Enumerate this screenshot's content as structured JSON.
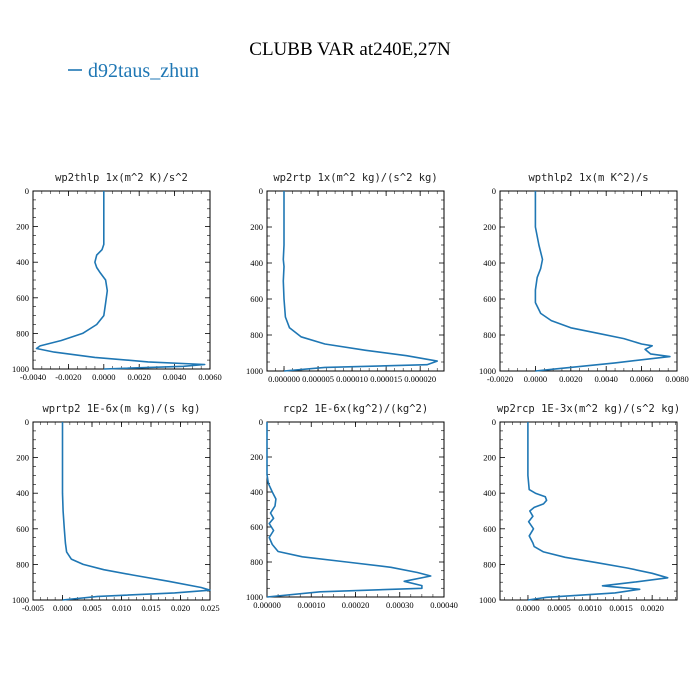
{
  "figure": {
    "title": "CLUBB VAR at240E,27N",
    "legend_label": "d92taus_zhun",
    "line_color": "#1f77b4"
  },
  "chart_data": [
    {
      "type": "line",
      "title": "wp2thlp  1x(m^2 K)/s^2",
      "xlim": [
        -0.004,
        0.006
      ],
      "ylim": [
        1000,
        0
      ],
      "xticks": [
        -0.004,
        -0.002,
        0.0,
        0.002,
        0.004,
        0.006
      ],
      "xtick_labels": [
        "-0.0040",
        "-0.0020",
        "0.0000",
        "0.0020",
        "0.0040",
        "0.0060"
      ],
      "yticks": [
        0,
        200,
        400,
        600,
        800,
        1000
      ],
      "ytick_labels": [
        "0",
        "200",
        "400",
        "600",
        "800",
        "1000"
      ],
      "series": [
        {
          "x": [
            0.0,
            0.0,
            0.0,
            0.0,
            -0.0001,
            -0.0004,
            -0.0005,
            -0.0004,
            -0.0002,
            0.0001,
            0.0002,
            0.0001,
            0.0,
            -0.0004,
            -0.0012,
            -0.0024,
            -0.0036,
            -0.0038,
            -0.0028,
            -0.0005,
            0.0025,
            0.0057,
            0.0045,
            0.0
          ],
          "y": [
            0,
            100,
            200,
            300,
            330,
            360,
            400,
            430,
            460,
            500,
            560,
            630,
            700,
            750,
            800,
            840,
            870,
            885,
            905,
            935,
            960,
            975,
            985,
            1000
          ]
        }
      ]
    },
    {
      "type": "line",
      "title": "wp2rtp  1x(m^2 kg)/(s^2 kg)",
      "xlim": [
        -2.5e-06,
        2.35e-05
      ],
      "ylim": [
        1000,
        0
      ],
      "xticks": [
        0.0,
        5e-06,
        1e-05,
        1.5e-05,
        2e-05
      ],
      "xtick_labels": [
        "0.000000",
        "0.000005",
        "0.000010",
        "0.000015",
        "0.000020"
      ],
      "yticks": [
        0,
        200,
        400,
        600,
        800,
        1000
      ],
      "ytick_labels": [
        "0",
        "200",
        "400",
        "600",
        "800",
        "1000"
      ],
      "series": [
        {
          "x": [
            0.0,
            0.0,
            0.0,
            0.0,
            -1e-07,
            0.0,
            -1e-07,
            0.0,
            2e-07,
            8e-07,
            2.5e-06,
            6e-06,
            1.2e-05,
            1.8e-05,
            2.25e-05,
            2.1e-05,
            6e-06,
            0.0
          ],
          "y": [
            0,
            100,
            200,
            300,
            380,
            420,
            500,
            600,
            700,
            760,
            810,
            850,
            885,
            915,
            945,
            965,
            980,
            1000
          ]
        }
      ]
    },
    {
      "type": "line",
      "title": "wpthlp2  1x(m K^2)/s",
      "xlim": [
        -0.002,
        0.008
      ],
      "ylim": [
        1000,
        0
      ],
      "xticks": [
        -0.002,
        0.0,
        0.002,
        0.004,
        0.006,
        0.008
      ],
      "xtick_labels": [
        "-0.0020",
        "0.0000",
        "0.0020",
        "0.0040",
        "0.0060",
        "0.0080"
      ],
      "yticks": [
        0,
        200,
        400,
        600,
        800,
        1000
      ],
      "ytick_labels": [
        "0",
        "200",
        "400",
        "600",
        "800",
        "1000"
      ],
      "series": [
        {
          "x": [
            0.0,
            0.0,
            0.0,
            0.0002,
            0.0004,
            0.0003,
            0.0001,
            0.0,
            0.0,
            0.0003,
            0.0009,
            0.002,
            0.0035,
            0.005,
            0.006,
            0.0066,
            0.0062,
            0.0065,
            0.0076,
            0.0045,
            0.001,
            0.0
          ],
          "y": [
            0,
            100,
            200,
            300,
            380,
            430,
            480,
            550,
            620,
            680,
            720,
            760,
            790,
            820,
            850,
            860,
            880,
            905,
            920,
            955,
            990,
            1000
          ]
        }
      ]
    },
    {
      "type": "line",
      "title": "wprtp2  1E-6x(m kg)/(s kg)",
      "xlim": [
        -0.005,
        0.025
      ],
      "ylim": [
        1000,
        0
      ],
      "xticks": [
        -0.005,
        0.0,
        0.005,
        0.01,
        0.015,
        0.02,
        0.025
      ],
      "xtick_labels": [
        "-0.005",
        "0.000",
        "0.005",
        "0.010",
        "0.015",
        "0.020",
        "0.025"
      ],
      "yticks": [
        0,
        200,
        400,
        600,
        800,
        1000
      ],
      "ytick_labels": [
        "0",
        "200",
        "400",
        "600",
        "800",
        "1000"
      ],
      "series": [
        {
          "x": [
            0.0,
            0.0,
            0.0,
            0.0001,
            0.0003,
            0.0005,
            0.0007,
            0.0015,
            0.0035,
            0.007,
            0.012,
            0.018,
            0.0235,
            0.025,
            0.019,
            0.006,
            0.0
          ],
          "y": [
            0,
            200,
            400,
            500,
            600,
            680,
            730,
            770,
            800,
            830,
            860,
            895,
            930,
            945,
            960,
            980,
            1000
          ]
        }
      ]
    },
    {
      "type": "line",
      "title": "rcp2  1E-6x(kg^2)/(kg^2)",
      "xlim": [
        0.0,
        0.0004
      ],
      "ylim": [
        1000,
        0
      ],
      "xticks": [
        0.0,
        0.0001,
        0.0002,
        0.0003,
        0.0004
      ],
      "xtick_labels": [
        "0.00000",
        "0.00010",
        "0.00020",
        "0.00030",
        "0.00040"
      ],
      "yticks": [
        0,
        200,
        400,
        600,
        800,
        1000
      ],
      "ytick_labels": [
        "0",
        "200",
        "400",
        "600",
        "800",
        "1000"
      ],
      "series": [
        {
          "x": [
            0.0,
            0.0,
            3e-06,
            1.2e-05,
            2e-05,
            1.8e-05,
            8e-06,
            1.5e-05,
            5e-06,
            1.5e-05,
            5e-06,
            1.2e-05,
            2.5e-05,
            8e-05,
            0.00018,
            0.00028,
            0.00034,
            0.00037,
            0.00031,
            0.00035,
            0.00035,
            0.00012,
            0.0
          ],
          "y": [
            0,
            300,
            350,
            400,
            440,
            480,
            520,
            550,
            580,
            620,
            660,
            700,
            740,
            770,
            800,
            830,
            860,
            880,
            910,
            935,
            950,
            970,
            1000
          ]
        }
      ]
    },
    {
      "type": "line",
      "title": "wp2rcp  1E-3x(m^2 kg)/(s^2 kg)",
      "xlim": [
        -0.00045,
        0.0024
      ],
      "ylim": [
        1000,
        0
      ],
      "xticks": [
        0.0,
        0.0005,
        0.001,
        0.0015,
        0.002
      ],
      "xtick_labels": [
        "0.0000",
        "0.0005",
        "0.0010",
        "0.0015",
        "0.0020"
      ],
      "yticks": [
        0,
        200,
        400,
        600,
        800,
        1000
      ],
      "ytick_labels": [
        "0",
        "200",
        "400",
        "600",
        "800",
        "1000"
      ],
      "series": [
        {
          "x": [
            0.0,
            0.0,
            0.0,
            2e-05,
            0.00012,
            0.00028,
            0.0003,
            0.00025,
            0.0001,
            3e-05,
            8e-05,
            1e-05,
            9e-05,
            2e-05,
            8e-05,
            0.0001,
            0.00025,
            0.0006,
            0.0011,
            0.0016,
            0.002,
            0.00225,
            0.0017,
            0.0012,
            0.0018,
            0.0014,
            0.0003,
            0.0
          ],
          "y": [
            0,
            200,
            300,
            380,
            400,
            420,
            440,
            460,
            480,
            500,
            530,
            560,
            600,
            640,
            680,
            700,
            730,
            760,
            790,
            820,
            850,
            875,
            900,
            920,
            940,
            960,
            985,
            1000
          ]
        }
      ]
    }
  ]
}
